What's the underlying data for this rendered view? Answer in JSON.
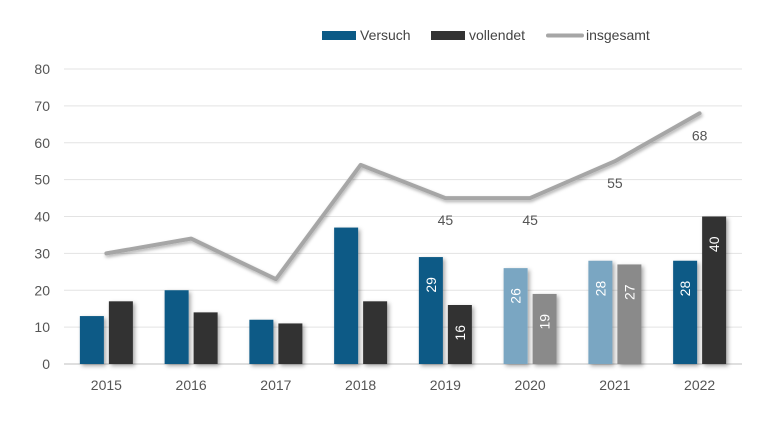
{
  "chart_data": {
    "type": "bar",
    "categories": [
      "2015",
      "2016",
      "2017",
      "2018",
      "2019",
      "2020",
      "2021",
      "2022"
    ],
    "series": [
      {
        "name": "Versuch",
        "type": "bar",
        "color": "#0b5a86",
        "values": [
          13,
          20,
          12,
          37,
          29,
          26,
          28,
          28
        ]
      },
      {
        "name": "vollendet",
        "type": "bar",
        "color": "#333333",
        "values": [
          17,
          14,
          11,
          17,
          16,
          19,
          27,
          40
        ]
      },
      {
        "name": "insgesamt",
        "type": "line",
        "color": "#a6a6a6",
        "values": [
          30,
          34,
          23,
          54,
          45,
          45,
          55,
          68
        ]
      }
    ],
    "faded_categories": [
      "2020",
      "2021"
    ],
    "faded_colors": {
      "Versuch": "#7aa6c2",
      "vollendet": "#8a8a8a"
    },
    "bar_data_labels": {
      "Versuch": [
        null,
        null,
        null,
        null,
        "29",
        "26",
        "28",
        "28"
      ],
      "vollendet": [
        null,
        null,
        null,
        null,
        "16",
        "19",
        "27",
        "40"
      ]
    },
    "line_data_labels": [
      null,
      null,
      null,
      null,
      "45",
      "45",
      "55",
      "68"
    ],
    "yticks": [
      "0",
      "10",
      "20",
      "30",
      "40",
      "50",
      "60",
      "70",
      "80"
    ],
    "ylim": [
      0,
      80
    ],
    "grid": true,
    "legend_position": "top-right",
    "title": "",
    "xlabel": "",
    "ylabel": ""
  }
}
